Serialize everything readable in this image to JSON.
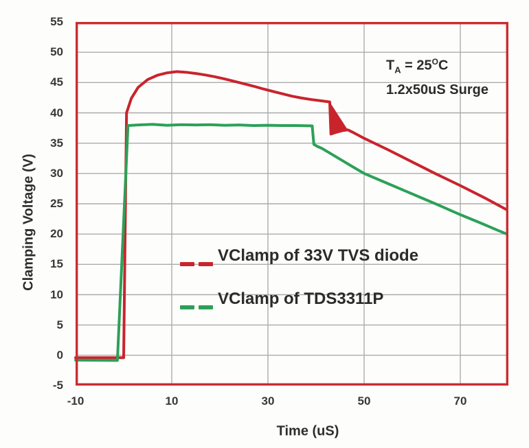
{
  "chart_data": {
    "type": "line",
    "title": "",
    "xlabel": "Time (uS)",
    "ylabel": "Clamping Voltage (V)",
    "xlim": [
      -10,
      80
    ],
    "ylim": [
      -5,
      55
    ],
    "x_ticks": [
      -10,
      10,
      30,
      50,
      70
    ],
    "y_ticks": [
      55,
      50,
      45,
      40,
      35,
      30,
      25,
      20,
      15,
      10,
      5,
      0,
      -5
    ],
    "x_gridlines": [
      10,
      30,
      50,
      70
    ],
    "y_gridlines": [
      0,
      5,
      10,
      15,
      20,
      25,
      30,
      35,
      40,
      45,
      50
    ],
    "grid_on": true,
    "grid_color": "#ababab",
    "frame_color": "#c92c31",
    "legend_position": "inside-center-left",
    "series": [
      {
        "name": "VClamp of 33V TVS diode",
        "color": "#c9242c",
        "width": 4,
        "points": [
          [
            -10,
            -0.4
          ],
          [
            0.0,
            -0.4
          ],
          [
            0.6,
            40.0
          ],
          [
            1.6,
            42.4
          ],
          [
            3,
            44.2
          ],
          [
            5,
            45.5
          ],
          [
            7,
            46.2
          ],
          [
            9,
            46.6
          ],
          [
            11,
            46.8
          ],
          [
            13,
            46.7
          ],
          [
            15,
            46.5
          ],
          [
            17,
            46.25
          ],
          [
            19,
            45.95
          ],
          [
            21,
            45.6
          ],
          [
            23,
            45.2
          ],
          [
            25,
            44.8
          ],
          [
            27,
            44.4
          ],
          [
            29,
            43.95
          ],
          [
            31,
            43.55
          ],
          [
            33,
            43.15
          ],
          [
            35,
            42.75
          ],
          [
            37,
            42.45
          ],
          [
            39,
            42.2
          ],
          [
            41,
            42.0
          ],
          [
            42.85,
            41.8
          ],
          [
            43.1,
            36.5
          ],
          [
            44.2,
            36.8
          ],
          [
            45.4,
            37.05
          ],
          [
            46.6,
            37.2
          ],
          [
            48,
            36.65
          ],
          [
            50,
            35.8
          ],
          [
            55,
            33.9
          ],
          [
            60,
            31.9
          ],
          [
            65,
            29.9
          ],
          [
            70,
            28.0
          ],
          [
            75,
            26.0
          ],
          [
            79.7,
            24.0
          ]
        ]
      },
      {
        "name": "VClamp of TDS3311P",
        "color": "#2ba157",
        "width": 4,
        "points": [
          [
            -10,
            -0.8
          ],
          [
            -1.3,
            -0.85
          ],
          [
            0.9,
            37.9
          ],
          [
            3,
            38.0
          ],
          [
            6,
            38.1
          ],
          [
            9,
            37.95
          ],
          [
            12,
            38.05
          ],
          [
            15,
            38.0
          ],
          [
            18,
            38.05
          ],
          [
            21,
            37.95
          ],
          [
            24,
            38.0
          ],
          [
            27,
            37.9
          ],
          [
            30,
            37.95
          ],
          [
            33,
            37.9
          ],
          [
            36,
            37.9
          ],
          [
            39.2,
            37.85
          ],
          [
            39.55,
            34.8
          ],
          [
            40.3,
            34.45
          ],
          [
            41.2,
            34.15
          ],
          [
            43,
            33.3
          ],
          [
            45,
            32.35
          ],
          [
            47,
            31.4
          ],
          [
            50,
            30.0
          ],
          [
            54,
            28.65
          ],
          [
            58,
            27.3
          ],
          [
            62,
            25.95
          ],
          [
            66,
            24.6
          ],
          [
            70,
            23.2
          ],
          [
            74,
            21.9
          ],
          [
            78,
            20.55
          ],
          [
            79.7,
            20.0
          ]
        ]
      }
    ],
    "ringing_fill": {
      "series_index": 0,
      "note": "filled oscillation notch on red curve",
      "polygon": [
        [
          42.85,
          41.8
        ],
        [
          43.12,
          36.5
        ],
        [
          46.6,
          37.2
        ]
      ]
    },
    "annotation_lines": [
      "TA = 25C (A subscript, degree as superscript O)",
      "1.2x50uS Surge"
    ]
  },
  "annotation": {
    "t": "T",
    "sub": "A",
    "mid": " = 25",
    "sup": "O",
    "end": "C",
    "line2": "1.2x50uS Surge"
  },
  "legend": {
    "items": [
      {
        "label": "VClamp of 33V TVS diode",
        "color": "#c9242c"
      },
      {
        "label": "VClamp of TDS3311P",
        "color": "#2ba157"
      }
    ]
  }
}
